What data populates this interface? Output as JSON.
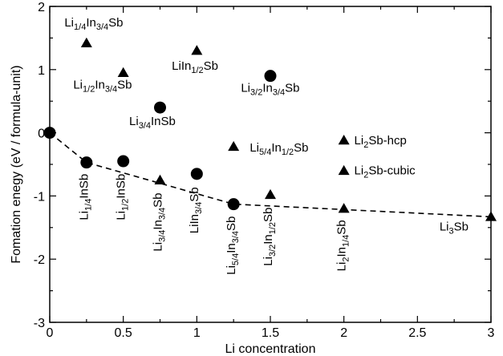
{
  "chart_data": {
    "type": "scatter",
    "xlabel": "Li concentration",
    "ylabel": "Fomation enegy (eV / formula-unit)",
    "xlim": [
      0,
      3
    ],
    "ylim": [
      -3,
      2
    ],
    "xticks": [
      "0",
      "0.5",
      "1",
      "1.5",
      "2",
      "2.5",
      "3"
    ],
    "yticks": [
      "-3",
      "-2",
      "-1",
      "0",
      "1",
      "2"
    ],
    "xtick_values": [
      0,
      0.5,
      1,
      1.5,
      2,
      2.5,
      3
    ],
    "ytick_values": [
      -3,
      -2,
      -1,
      0,
      1,
      2
    ],
    "grid": false,
    "hull_line": {
      "style": "dashed",
      "x": [
        0,
        0.25,
        1.25,
        3
      ],
      "y": [
        0,
        -0.47,
        -1.13,
        -1.33
      ]
    },
    "points": [
      {
        "marker": "circle",
        "x": 0,
        "y": 0
      },
      {
        "marker": "circle",
        "x": 0.25,
        "y": -0.47
      },
      {
        "marker": "circle",
        "x": 0.5,
        "y": -0.45
      },
      {
        "marker": "circle",
        "x": 0.75,
        "y": 0.4
      },
      {
        "marker": "circle",
        "x": 1.0,
        "y": -0.65
      },
      {
        "marker": "circle",
        "x": 1.25,
        "y": -1.13
      },
      {
        "marker": "circle",
        "x": 1.5,
        "y": 0.9
      },
      {
        "marker": "triangle",
        "x": 0.25,
        "y": 1.42
      },
      {
        "marker": "triangle",
        "x": 0.5,
        "y": 0.95
      },
      {
        "marker": "triangle",
        "x": 0.75,
        "y": -0.75
      },
      {
        "marker": "triangle",
        "x": 1.0,
        "y": 1.3
      },
      {
        "marker": "triangle",
        "x": 1.25,
        "y": -0.22
      },
      {
        "marker": "triangle",
        "x": 1.5,
        "y": -0.98
      },
      {
        "marker": "triangle",
        "x": 2.0,
        "y": -0.12
      },
      {
        "marker": "triangle",
        "x": 2.0,
        "y": -0.6
      },
      {
        "marker": "triangle",
        "x": 2.0,
        "y": -1.2
      },
      {
        "marker": "triangle",
        "x": 3.0,
        "y": -1.33
      }
    ],
    "labels": [
      {
        "rotate": 0,
        "anchor": "start",
        "x": 0.1,
        "y": 1.68,
        "parts": [
          {
            "t": "Li"
          },
          {
            "t": "1/4",
            "sub": true
          },
          {
            "t": "In"
          },
          {
            "t": "3/4",
            "sub": true
          },
          {
            "t": "Sb"
          }
        ]
      },
      {
        "rotate": 0,
        "anchor": "start",
        "x": 0.83,
        "y": 1.0,
        "parts": [
          {
            "t": "LiIn"
          },
          {
            "t": "1/2",
            "sub": true
          },
          {
            "t": "Sb"
          }
        ]
      },
      {
        "rotate": 0,
        "anchor": "start",
        "x": 0.16,
        "y": 0.7,
        "parts": [
          {
            "t": "Li"
          },
          {
            "t": "1/2",
            "sub": true
          },
          {
            "t": "In"
          },
          {
            "t": "3/4",
            "sub": true
          },
          {
            "t": "Sb"
          }
        ]
      },
      {
        "rotate": 0,
        "anchor": "start",
        "x": 1.3,
        "y": 0.65,
        "parts": [
          {
            "t": "Li"
          },
          {
            "t": "3/2",
            "sub": true
          },
          {
            "t": "In"
          },
          {
            "t": "3/4",
            "sub": true
          },
          {
            "t": "Sb"
          }
        ]
      },
      {
        "rotate": 0,
        "anchor": "start",
        "x": 0.54,
        "y": 0.12,
        "parts": [
          {
            "t": "Li"
          },
          {
            "t": "3/4",
            "sub": true
          },
          {
            "t": "InSb"
          }
        ]
      },
      {
        "rotate": 0,
        "anchor": "start",
        "x": 1.36,
        "y": -0.3,
        "parts": [
          {
            "t": "Li"
          },
          {
            "t": "5/4",
            "sub": true
          },
          {
            "t": "In"
          },
          {
            "t": "1/2",
            "sub": true
          },
          {
            "t": "Sb"
          }
        ]
      },
      {
        "rotate": 0,
        "anchor": "start",
        "x": 2.07,
        "y": -0.18,
        "parts": [
          {
            "t": "Li"
          },
          {
            "t": "2",
            "sub": true
          },
          {
            "t": "Sb-hcp"
          }
        ]
      },
      {
        "rotate": 0,
        "anchor": "start",
        "x": 2.07,
        "y": -0.66,
        "parts": [
          {
            "t": "Li"
          },
          {
            "t": "2",
            "sub": true
          },
          {
            "t": "Sb-cubic"
          }
        ]
      },
      {
        "rotate": 0,
        "anchor": "start",
        "x": 2.65,
        "y": -1.55,
        "parts": [
          {
            "t": "Li"
          },
          {
            "t": "3",
            "sub": true
          },
          {
            "t": "Sb"
          }
        ]
      },
      {
        "rotate": -90,
        "anchor": "end",
        "x": 0.26,
        "y": -0.65,
        "parts": [
          {
            "t": "Li"
          },
          {
            "t": "1/4",
            "sub": true
          },
          {
            "t": "InSb"
          }
        ]
      },
      {
        "rotate": -90,
        "anchor": "end",
        "x": 0.51,
        "y": -0.65,
        "parts": [
          {
            "t": "Li"
          },
          {
            "t": "1/2",
            "sub": true
          },
          {
            "t": "InSb"
          }
        ]
      },
      {
        "rotate": -90,
        "anchor": "end",
        "x": 0.76,
        "y": -0.95,
        "parts": [
          {
            "t": "Li"
          },
          {
            "t": "3/4",
            "sub": true
          },
          {
            "t": "In"
          },
          {
            "t": "3/4",
            "sub": true
          },
          {
            "t": "Sb"
          }
        ]
      },
      {
        "rotate": -90,
        "anchor": "end",
        "x": 1.01,
        "y": -0.86,
        "parts": [
          {
            "t": "LiIn"
          },
          {
            "t": "3/4",
            "sub": true
          },
          {
            "t": "Sb"
          }
        ]
      },
      {
        "rotate": -90,
        "anchor": "end",
        "x": 1.26,
        "y": -1.32,
        "parts": [
          {
            "t": "Li"
          },
          {
            "t": "5/4",
            "sub": true
          },
          {
            "t": "In"
          },
          {
            "t": "3/4",
            "sub": true
          },
          {
            "t": "Sb"
          }
        ]
      },
      {
        "rotate": -90,
        "anchor": "end",
        "x": 1.51,
        "y": -1.18,
        "parts": [
          {
            "t": "Li"
          },
          {
            "t": "3/2",
            "sub": true
          },
          {
            "t": "In"
          },
          {
            "t": "1/2",
            "sub": true
          },
          {
            "t": "Sb"
          }
        ]
      },
      {
        "rotate": -90,
        "anchor": "end",
        "x": 2.01,
        "y": -1.38,
        "parts": [
          {
            "t": "Li"
          },
          {
            "t": "2",
            "sub": true
          },
          {
            "t": "In"
          },
          {
            "t": "1/4",
            "sub": true
          },
          {
            "t": "Sb"
          }
        ]
      }
    ]
  }
}
